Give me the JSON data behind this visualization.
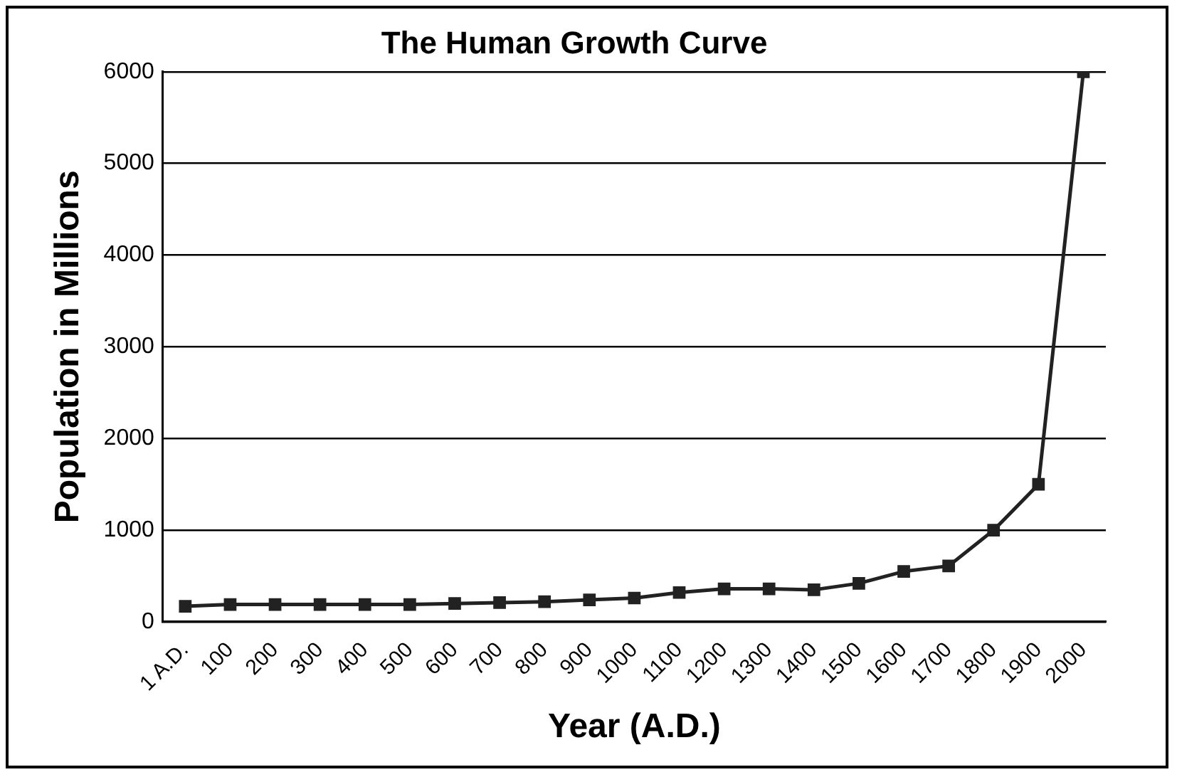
{
  "chart_data": {
    "type": "line",
    "title": "The Human Growth Curve",
    "xlabel": "Year (A.D.)",
    "ylabel": "Population in Millions",
    "categories": [
      "1 A.D.",
      "100",
      "200",
      "300",
      "400",
      "500",
      "600",
      "700",
      "800",
      "900",
      "1000",
      "1100",
      "1200",
      "1300",
      "1400",
      "1500",
      "1600",
      "1700",
      "1800",
      "1900",
      "2000"
    ],
    "series": [
      {
        "color": "#222222",
        "values": [
          170,
          190,
          190,
          190,
          190,
          190,
          200,
          210,
          220,
          240,
          260,
          320,
          360,
          360,
          350,
          420,
          550,
          610,
          1000,
          1500,
          6000
        ]
      }
    ],
    "ylim": [
      0,
      6000
    ],
    "yticks": [
      0,
      1000,
      2000,
      3000,
      4000,
      5000,
      6000
    ],
    "grid": "y",
    "legend": false,
    "marker": "square",
    "line_style": "solid"
  }
}
